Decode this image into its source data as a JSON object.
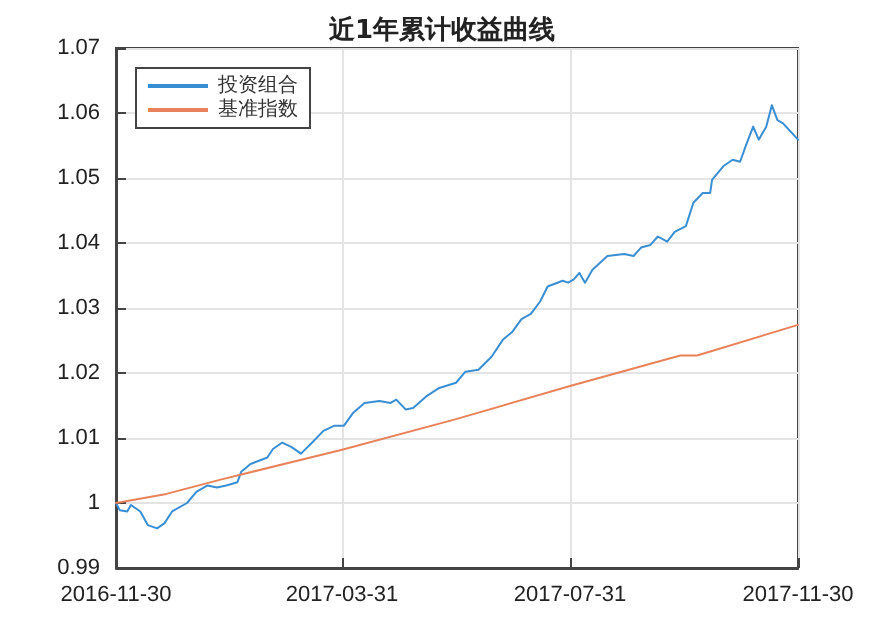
{
  "chart_data": {
    "type": "line",
    "title": "近1年累计收益曲线",
    "xlim": [
      "2016-11-30",
      "2017-11-30"
    ],
    "xticks": [
      "2016-11-30",
      "2017-03-31",
      "2017-07-31",
      "2017-11-30"
    ],
    "ylim": [
      0.99,
      1.07
    ],
    "yticks": [
      0.99,
      1,
      1.01,
      1.02,
      1.03,
      1.04,
      1.05,
      1.06,
      1.07
    ],
    "grid": true,
    "legend": "top left",
    "marker": "none",
    "line_style": "solid",
    "series": [
      {
        "name": "投资组合",
        "color": "#3a8fd4",
        "x": [
          "2016-11-30",
          "2016-12-02",
          "2016-12-06",
          "2016-12-08",
          "2016-12-13",
          "2016-12-17",
          "2016-12-22",
          "2016-12-26",
          "2016-12-30",
          "2017-01-07",
          "2017-01-12",
          "2017-01-18",
          "2017-01-23",
          "2017-01-28",
          "2017-02-03",
          "2017-02-05",
          "2017-02-10",
          "2017-02-19",
          "2017-02-22",
          "2017-02-27",
          "2017-03-04",
          "2017-03-09",
          "2017-03-15",
          "2017-03-21",
          "2017-03-27",
          "2017-04-01",
          "2017-04-06",
          "2017-04-12",
          "2017-04-20",
          "2017-04-26",
          "2017-04-29",
          "2017-05-04",
          "2017-05-08",
          "2017-05-15",
          "2017-05-22",
          "2017-05-31",
          "2017-06-05",
          "2017-06-12",
          "2017-06-19",
          "2017-06-25",
          "2017-06-30",
          "2017-07-05",
          "2017-07-10",
          "2017-07-15",
          "2017-07-19",
          "2017-07-27",
          "2017-07-30",
          "2017-08-02",
          "2017-08-05",
          "2017-08-08",
          "2017-08-12",
          "2017-08-20",
          "2017-08-29",
          "2017-09-03",
          "2017-09-07",
          "2017-09-12",
          "2017-09-16",
          "2017-09-21",
          "2017-09-25",
          "2017-10-01",
          "2017-10-05",
          "2017-10-10",
          "2017-10-14",
          "2017-10-15",
          "2017-10-21",
          "2017-10-26",
          "2017-10-30",
          "2017-11-02",
          "2017-11-06",
          "2017-11-09",
          "2017-11-13",
          "2017-11-16",
          "2017-11-19",
          "2017-11-22",
          "2017-11-30"
        ],
        "values": [
          1.0,
          0.9989,
          0.9987,
          0.9997,
          0.9987,
          0.9966,
          0.9961,
          0.9969,
          0.9987,
          1.0,
          1.0017,
          1.0027,
          1.0024,
          1.0027,
          1.0032,
          1.0048,
          1.006,
          1.007,
          1.0083,
          1.0093,
          1.0086,
          1.0076,
          1.0093,
          1.0111,
          1.0119,
          1.0119,
          1.0139,
          1.0154,
          1.0157,
          1.0154,
          1.0159,
          1.0144,
          1.0146,
          1.0164,
          1.0177,
          1.0185,
          1.0202,
          1.0205,
          1.0225,
          1.0251,
          1.0263,
          1.0283,
          1.0291,
          1.031,
          1.0333,
          1.0342,
          1.0339,
          1.0344,
          1.0354,
          1.0339,
          1.0359,
          1.038,
          1.0383,
          1.038,
          1.0393,
          1.0397,
          1.041,
          1.0402,
          1.0417,
          1.0426,
          1.0462,
          1.0477,
          1.0477,
          1.0497,
          1.0518,
          1.0528,
          1.0525,
          1.0549,
          1.0579,
          1.0559,
          1.0579,
          1.0612,
          1.0589,
          1.0584,
          1.0559
        ]
      },
      {
        "name": "基准指数",
        "color": "#e8825a",
        "x": [
          "2016-11-30",
          "2016-12-27",
          "2017-01-25",
          "2017-03-31",
          "2017-05-31",
          "2017-07-31",
          "2017-09-28",
          "2017-10-07",
          "2017-11-30"
        ],
        "values": [
          1.0,
          1.0014,
          1.0036,
          1.0082,
          1.0129,
          1.018,
          1.0227,
          1.0227,
          1.0274
        ]
      }
    ]
  }
}
